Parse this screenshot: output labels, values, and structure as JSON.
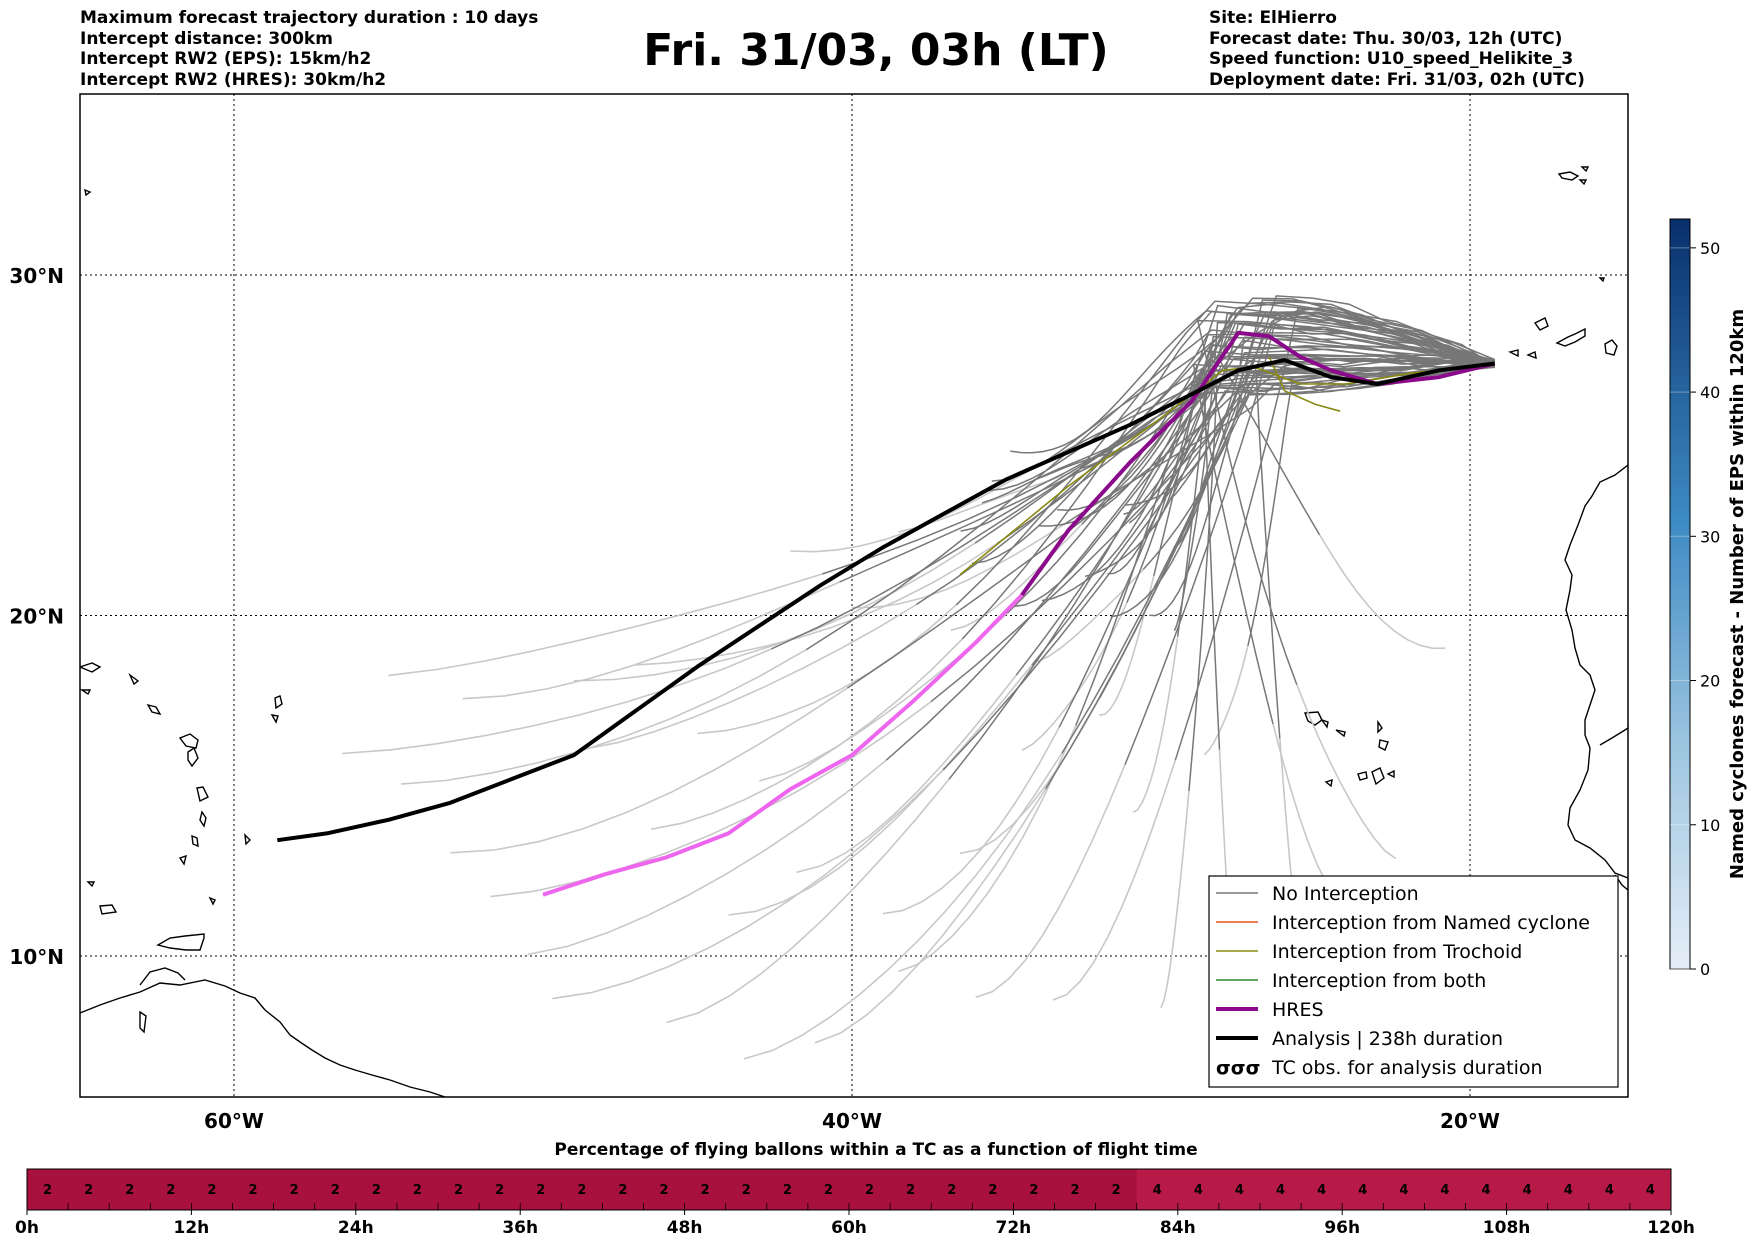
{
  "header_left": [
    "Maximum forecast trajectory duration : 10 days",
    "Intercept distance: 300km",
    "Intercept RW2 (EPS):  15km/h2",
    "Intercept RW2 (HRES): 30km/h2"
  ],
  "title": "Fri. 31/03, 03h (LT)",
  "header_right": [
    "Site: ElHierro",
    "Forecast date: Thu. 30/03, 12h (UTC)",
    "Speed function: U10_speed_Helikite_3",
    "Deployment date: Fri. 31/03, 02h (UTC)"
  ],
  "map": {
    "lon_range": [
      -65,
      15
    ],
    "lat_range": [
      5,
      35
    ],
    "lon_ticks": [
      {
        "value": -60,
        "label": "60°W"
      },
      {
        "value": -40,
        "label": "40°W"
      },
      {
        "value": -20,
        "label": "20°W"
      }
    ],
    "lat_ticks": [
      {
        "value": 30,
        "label": "30°N"
      },
      {
        "value": 20,
        "label": "20°N"
      },
      {
        "value": 10,
        "label": "10°N"
      }
    ],
    "colors": {
      "eps_no_interception": "#777777",
      "eps_light": "#c8c8c8",
      "named_cyclone": "#e8541c",
      "trochoid": "#8a8a10",
      "both": "#2a8a2a",
      "hres": "#8b0a8b",
      "hres_extension": "#ee66ee",
      "analysis": "#000000"
    },
    "analysis_track": [
      [
        -19.2,
        27.4
      ],
      [
        -21,
        27.2
      ],
      [
        -23,
        26.8
      ],
      [
        -24.5,
        27.0
      ],
      [
        -26,
        27.5
      ],
      [
        -27.5,
        27.2
      ],
      [
        -29,
        26.5
      ],
      [
        -31,
        25.6
      ],
      [
        -33,
        24.8
      ],
      [
        -35,
        24.0
      ],
      [
        -37,
        23.0
      ],
      [
        -39,
        22.0
      ],
      [
        -41,
        20.9
      ],
      [
        -43,
        19.7
      ],
      [
        -45,
        18.5
      ],
      [
        -47,
        17.2
      ],
      [
        -49,
        15.9
      ],
      [
        -51,
        15.2
      ],
      [
        -53,
        14.5
      ],
      [
        -55,
        14.0
      ],
      [
        -57,
        13.6
      ],
      [
        -58.6,
        13.4
      ]
    ],
    "hres_track": [
      [
        -19.2,
        27.4
      ],
      [
        -21,
        27.0
      ],
      [
        -23,
        26.8
      ],
      [
        -24.5,
        27.2
      ],
      [
        -25.5,
        27.6
      ],
      [
        -26.5,
        28.2
      ],
      [
        -27.5,
        28.3
      ],
      [
        -29,
        26.3
      ],
      [
        -31,
        24.5
      ],
      [
        -33,
        22.5
      ],
      [
        -34.5,
        20.6
      ]
    ],
    "hres_extension_track": [
      [
        -34.5,
        20.6
      ],
      [
        -36,
        19.2
      ],
      [
        -38,
        17.5
      ],
      [
        -40,
        15.9
      ],
      [
        -42,
        14.9
      ],
      [
        -44,
        13.6
      ],
      [
        -46,
        12.9
      ],
      [
        -48,
        12.4
      ],
      [
        -50,
        11.8
      ]
    ],
    "legend": {
      "items": [
        {
          "label": "No Interception",
          "color": "#777777",
          "width": 1.5,
          "kind": "line"
        },
        {
          "label": "Interception from Named cyclone",
          "color": "#e8541c",
          "width": 1.5,
          "kind": "line"
        },
        {
          "label": "Interception from Trochoid",
          "color": "#8a8a10",
          "width": 1.5,
          "kind": "line"
        },
        {
          "label": "Interception from both",
          "color": "#2a8a2a",
          "width": 1.5,
          "kind": "line"
        },
        {
          "label": "HRES",
          "color": "#8b0a8b",
          "width": 4,
          "kind": "line"
        },
        {
          "label": "Analysis | 238h duration",
          "color": "#000000",
          "width": 4,
          "kind": "line"
        },
        {
          "label": "TC obs. for analysis duration",
          "color": "#000000",
          "width": 1,
          "kind": "symbol",
          "symbol": "σσσ"
        }
      ]
    }
  },
  "colorbar": {
    "title": "Named cyclones forecast - Number of EPS within 120km",
    "ticks": [
      "0",
      "10",
      "20",
      "30",
      "40",
      "50"
    ],
    "max": 52,
    "colors": [
      "#e6eef8",
      "#08306b"
    ]
  },
  "strip": {
    "title": "Percentage of flying ballons within a TC as a function of flight time",
    "cells": [
      "2",
      "2",
      "2",
      "2",
      "2",
      "2",
      "2",
      "2",
      "2",
      "2",
      "2",
      "2",
      "2",
      "2",
      "2",
      "2",
      "2",
      "2",
      "2",
      "2",
      "2",
      "2",
      "2",
      "2",
      "2",
      "2",
      "2",
      "4",
      "4",
      "4",
      "4",
      "4",
      "4",
      "4",
      "4",
      "4",
      "4",
      "4",
      "4",
      "4"
    ],
    "colors": {
      "low": "#a8103e",
      "high": "#b81a48"
    },
    "time_labels": [
      "0h",
      "12h",
      "24h",
      "36h",
      "48h",
      "60h",
      "72h",
      "84h",
      "96h",
      "108h",
      "120h"
    ]
  }
}
